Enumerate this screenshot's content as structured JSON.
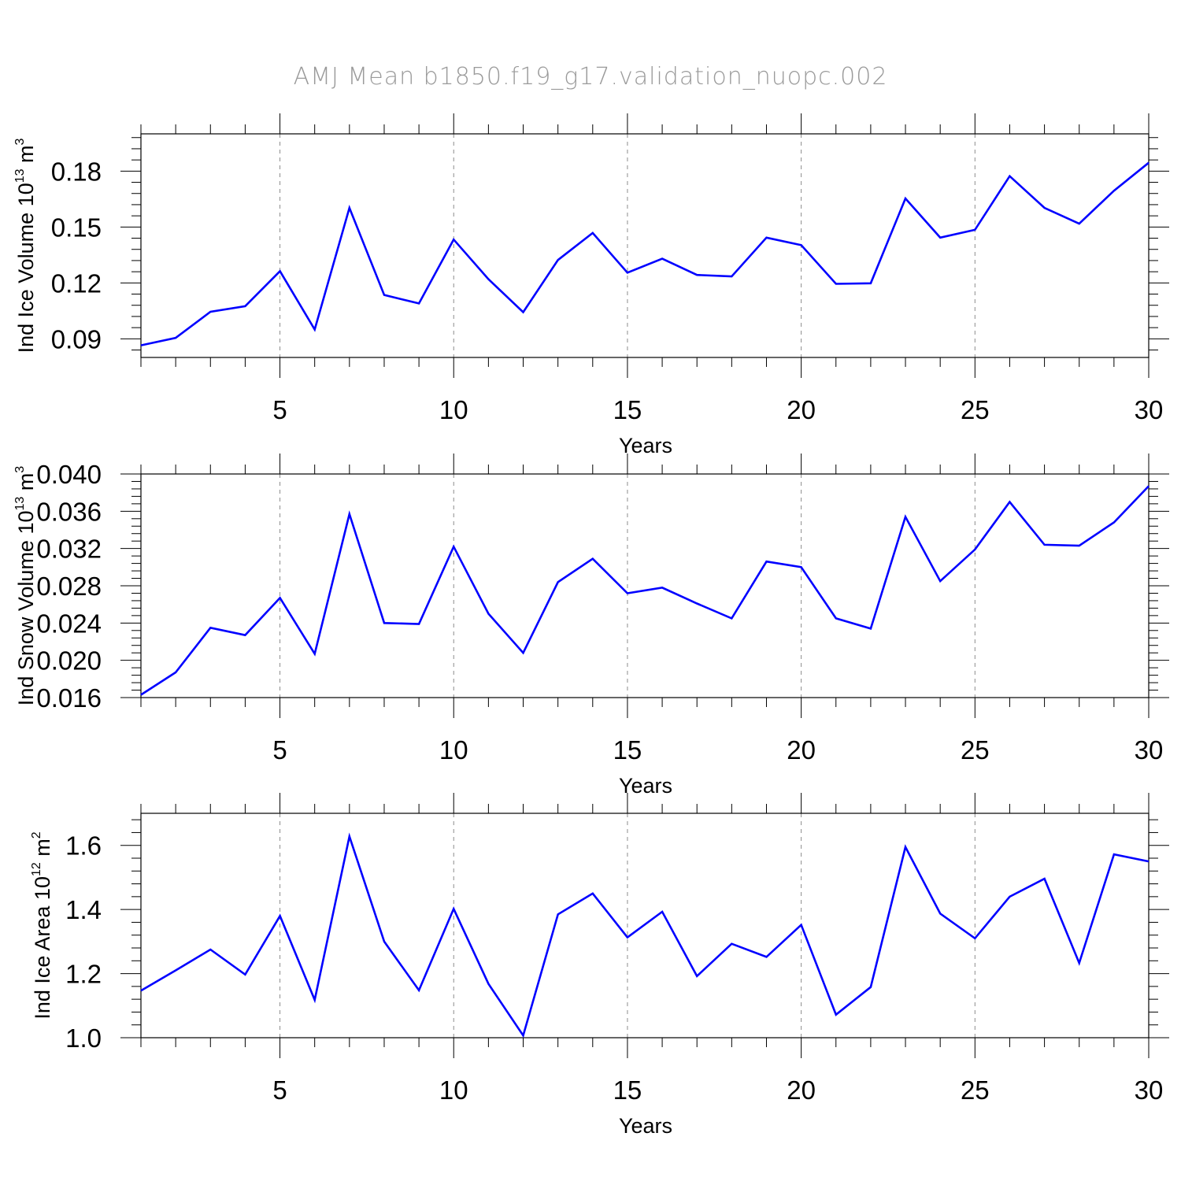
{
  "title": "AMJ Mean b1850.f19_g17.validation_nuopc.002",
  "colors": {
    "line": "#0000ff",
    "grid": "#8c8c8c",
    "axis": "#000000",
    "title": "#9a9a9a"
  },
  "chart_data": [
    {
      "type": "line",
      "ylabel_main": "Ind Ice Volume 10",
      "ylabel_exp1": "13",
      "ylabel_unit": " m",
      "ylabel_exp2": "3",
      "xlabel": "Years",
      "xlim": [
        1,
        30
      ],
      "ylim": [
        0.08,
        0.2
      ],
      "xticks": [
        5,
        10,
        15,
        20,
        25,
        30
      ],
      "yticks": [
        0.09,
        0.12,
        0.15,
        0.18
      ],
      "ytick_labels": [
        "0.09",
        "0.12",
        "0.15",
        "0.18"
      ],
      "grid": "vertical dashed at major x ticks",
      "x": [
        1,
        2,
        3,
        4,
        5,
        6,
        7,
        8,
        9,
        10,
        11,
        12,
        13,
        14,
        15,
        16,
        17,
        18,
        19,
        20,
        21,
        22,
        23,
        24,
        25,
        26,
        27,
        28,
        29,
        30
      ],
      "values": [
        0.0865,
        0.0905,
        0.1045,
        0.1075,
        0.1263,
        0.095,
        0.1603,
        0.1135,
        0.109,
        0.1433,
        0.122,
        0.1043,
        0.1323,
        0.1468,
        0.1255,
        0.133,
        0.1243,
        0.1235,
        0.1443,
        0.1403,
        0.1195,
        0.1198,
        0.1653,
        0.1443,
        0.1485,
        0.1773,
        0.1603,
        0.1518,
        0.1695,
        0.1845
      ]
    },
    {
      "type": "line",
      "ylabel_main": "Ind Snow Volume 10",
      "ylabel_exp1": "13",
      "ylabel_unit": " m",
      "ylabel_exp2": "3",
      "xlabel": "Years",
      "xlim": [
        1,
        30
      ],
      "ylim": [
        0.016,
        0.04
      ],
      "xticks": [
        5,
        10,
        15,
        20,
        25,
        30
      ],
      "yticks": [
        0.016,
        0.02,
        0.024,
        0.028,
        0.032,
        0.036,
        0.04
      ],
      "ytick_labels": [
        "0.016",
        "0.020",
        "0.024",
        "0.028",
        "0.032",
        "0.036",
        "0.040"
      ],
      "grid": "vertical dashed at major x ticks",
      "x": [
        1,
        2,
        3,
        4,
        5,
        6,
        7,
        8,
        9,
        10,
        11,
        12,
        13,
        14,
        15,
        16,
        17,
        18,
        19,
        20,
        21,
        22,
        23,
        24,
        25,
        26,
        27,
        28,
        29,
        30
      ],
      "values": [
        0.0163,
        0.0187,
        0.0235,
        0.0227,
        0.0267,
        0.0207,
        0.0357,
        0.024,
        0.0239,
        0.0322,
        0.025,
        0.0208,
        0.0284,
        0.0309,
        0.0272,
        0.0278,
        0.0261,
        0.0245,
        0.0306,
        0.03,
        0.0245,
        0.0234,
        0.0354,
        0.0285,
        0.0319,
        0.037,
        0.0324,
        0.0323,
        0.0348,
        0.0387
      ]
    },
    {
      "type": "line",
      "ylabel_main": "Ind Ice Area 10",
      "ylabel_exp1": "12",
      "ylabel_unit": " m",
      "ylabel_exp2": "2",
      "xlabel": "Years",
      "xlim": [
        1,
        30
      ],
      "ylim": [
        1.0,
        1.7
      ],
      "xticks": [
        5,
        10,
        15,
        20,
        25,
        30
      ],
      "yticks": [
        1.0,
        1.2,
        1.4,
        1.6
      ],
      "ytick_labels": [
        "1.0",
        "1.2",
        "1.4",
        "1.6"
      ],
      "grid": "vertical dashed at major x ticks",
      "x": [
        1,
        2,
        3,
        4,
        5,
        6,
        7,
        8,
        9,
        10,
        11,
        12,
        13,
        14,
        15,
        16,
        17,
        18,
        19,
        20,
        21,
        22,
        23,
        24,
        25,
        26,
        27,
        28,
        29,
        30
      ],
      "values": [
        1.147,
        1.21,
        1.275,
        1.197,
        1.38,
        1.118,
        1.628,
        1.3,
        1.148,
        1.402,
        1.168,
        1.007,
        1.385,
        1.45,
        1.313,
        1.393,
        1.192,
        1.293,
        1.252,
        1.352,
        1.072,
        1.158,
        1.595,
        1.387,
        1.31,
        1.44,
        1.496,
        1.233,
        1.572,
        1.55
      ]
    }
  ]
}
